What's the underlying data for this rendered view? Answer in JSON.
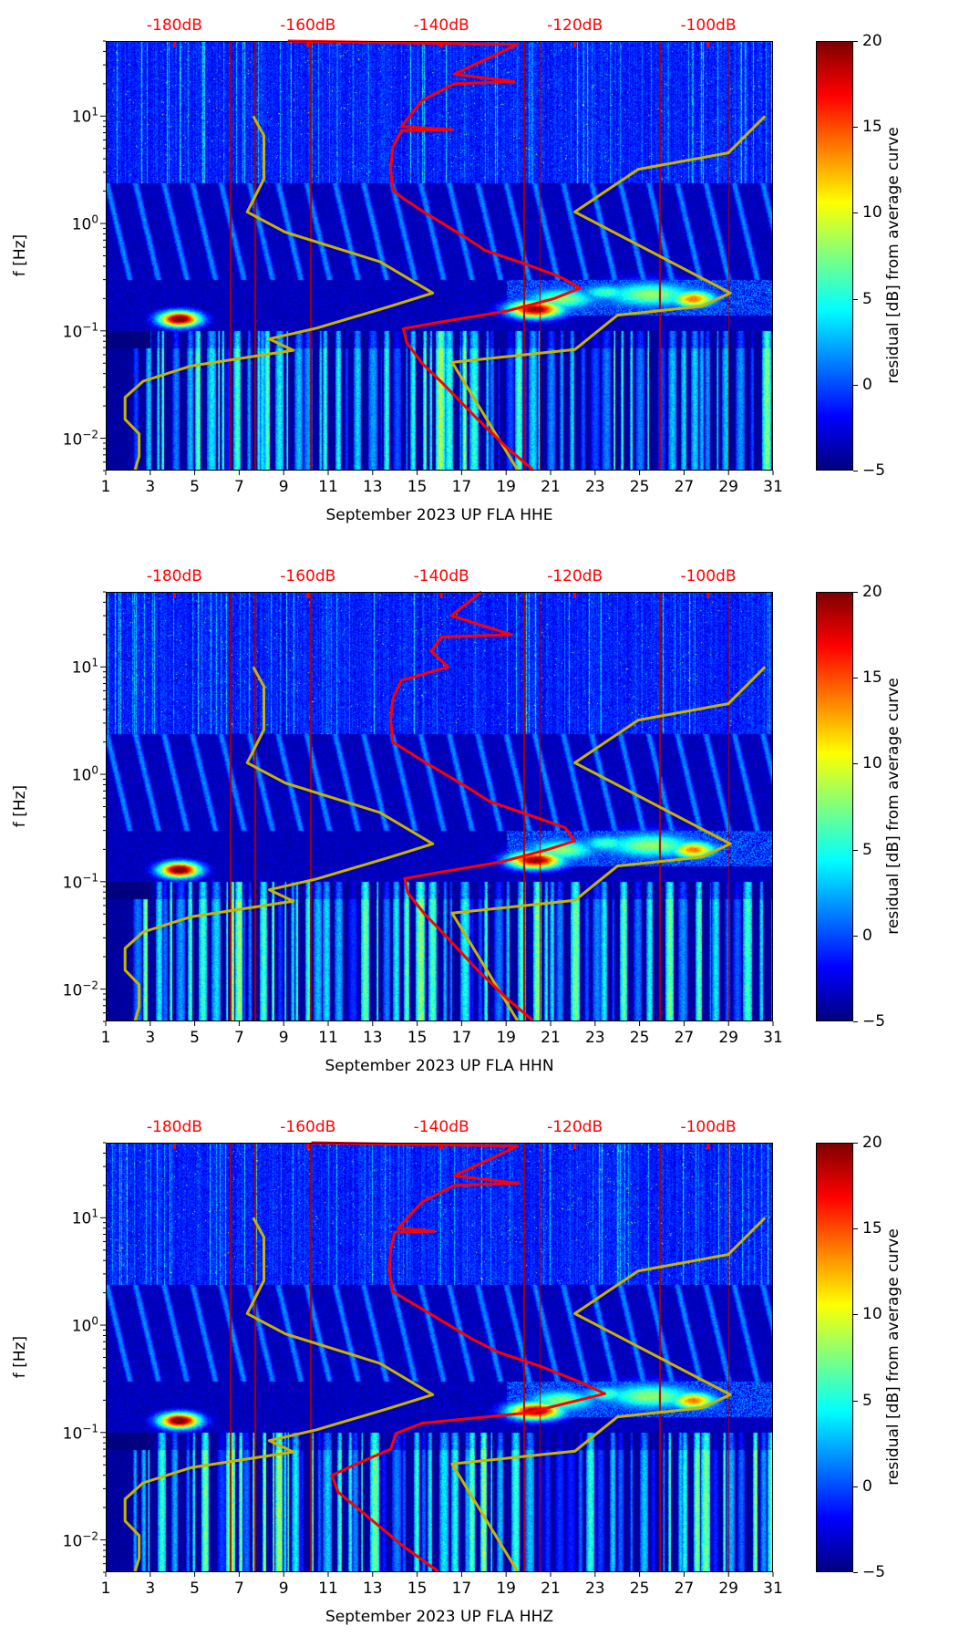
{
  "chart_data": [
    {
      "type": "heatmap",
      "title": "",
      "xlabel": "September 2023 UP FLA  HHE",
      "ylabel": "f [Hz]",
      "colorbar_label": "residual [dB] from average curve",
      "xlim": [
        1,
        31
      ],
      "ylim": [
        0.005,
        50
      ],
      "yscale": "log",
      "clim": [
        -5,
        20
      ],
      "top_xlim": [
        -190.3,
        -90.3
      ],
      "red_curve": [
        [
          -163,
          50
        ],
        [
          -128.6,
          46.4
        ],
        [
          -138.1,
          24.6
        ],
        [
          -129.1,
          21
        ],
        [
          -138.1,
          20
        ],
        [
          -142.9,
          14
        ],
        [
          -146,
          8
        ],
        [
          -138.4,
          7.5
        ],
        [
          -146,
          7.3
        ],
        [
          -147.3,
          5.1
        ],
        [
          -147.6,
          3.2
        ],
        [
          -147.3,
          2.06
        ],
        [
          -146,
          1.76
        ],
        [
          -142.9,
          1.31
        ],
        [
          -136.5,
          0.75
        ],
        [
          -133.4,
          0.56
        ],
        [
          -127,
          0.41
        ],
        [
          -122.3,
          0.32
        ],
        [
          -119.2,
          0.25
        ],
        [
          -123.1,
          0.2
        ],
        [
          -130.2,
          0.153
        ],
        [
          -139.7,
          0.122
        ],
        [
          -145.7,
          0.105
        ],
        [
          -145.2,
          0.078
        ],
        [
          -142.9,
          0.05
        ],
        [
          -139.7,
          0.032
        ],
        [
          -135,
          0.016
        ],
        [
          -130.2,
          0.0082
        ],
        [
          -126.3,
          0.0051
        ]
      ]
    },
    {
      "type": "heatmap",
      "title": "",
      "xlabel": "September 2023 UP FLA  HHN",
      "ylabel": "f [Hz]",
      "colorbar_label": "residual [dB] from average curve",
      "xlim": [
        1,
        31
      ],
      "ylim": [
        0.005,
        50
      ],
      "yscale": "log",
      "clim": [
        -5,
        20
      ],
      "top_xlim": [
        -190.3,
        -90.3
      ],
      "red_curve": [
        [
          -134,
          50
        ],
        [
          -138.5,
          30
        ],
        [
          -129.5,
          20
        ],
        [
          -140,
          19
        ],
        [
          -141.5,
          14
        ],
        [
          -139,
          10
        ],
        [
          -146,
          7.5
        ],
        [
          -147.3,
          5
        ],
        [
          -147.6,
          3.2
        ],
        [
          -147.3,
          2.0
        ],
        [
          -145.5,
          1.7
        ],
        [
          -142.5,
          1.3
        ],
        [
          -136,
          0.75
        ],
        [
          -132.8,
          0.56
        ],
        [
          -126.5,
          0.41
        ],
        [
          -121.5,
          0.32
        ],
        [
          -120,
          0.24
        ],
        [
          -124,
          0.2
        ],
        [
          -131,
          0.153
        ],
        [
          -140,
          0.123
        ],
        [
          -145.5,
          0.107
        ],
        [
          -145,
          0.078
        ],
        [
          -142.5,
          0.05
        ],
        [
          -139.5,
          0.032
        ],
        [
          -135,
          0.016
        ],
        [
          -130.2,
          0.0082
        ],
        [
          -126.3,
          0.0051
        ]
      ]
    },
    {
      "type": "heatmap",
      "title": "",
      "xlabel": "September 2023 UP FLA  HHZ",
      "ylabel": "f [Hz]",
      "colorbar_label": "residual [dB] from average curve",
      "xlim": [
        1,
        31
      ],
      "ylim": [
        0.005,
        50
      ],
      "yscale": "log",
      "clim": [
        -5,
        20
      ],
      "top_xlim": [
        -190.3,
        -90.3
      ],
      "red_curve": [
        [
          -159.5,
          50
        ],
        [
          -128.6,
          46.4
        ],
        [
          -138.1,
          24.6
        ],
        [
          -128.5,
          21
        ],
        [
          -138.1,
          20
        ],
        [
          -142.9,
          14
        ],
        [
          -146.5,
          8
        ],
        [
          -141,
          7.5
        ],
        [
          -147,
          7.3
        ],
        [
          -147.6,
          5.1
        ],
        [
          -147.8,
          3.2
        ],
        [
          -147.3,
          2.06
        ],
        [
          -145.5,
          1.76
        ],
        [
          -142,
          1.31
        ],
        [
          -135.5,
          0.75
        ],
        [
          -131.5,
          0.56
        ],
        [
          -125,
          0.41
        ],
        [
          -119.5,
          0.3
        ],
        [
          -115.5,
          0.23
        ],
        [
          -127,
          0.153
        ],
        [
          -142.9,
          0.122
        ],
        [
          -146.8,
          0.098
        ],
        [
          -147.6,
          0.07
        ],
        [
          -152.4,
          0.052
        ],
        [
          -156.4,
          0.04
        ],
        [
          -155.5,
          0.028
        ],
        [
          -150.8,
          0.016
        ],
        [
          -146,
          0.009
        ],
        [
          -140.5,
          0.0051
        ]
      ]
    }
  ],
  "model_curves": {
    "low_noise_model": [
      [
        -168.2,
        10
      ],
      [
        -166.6,
        6.6
      ],
      [
        -166.6,
        2.6
      ],
      [
        -169.1,
        1.28
      ],
      [
        -163.4,
        0.83
      ],
      [
        -149.2,
        0.44
      ],
      [
        -141.3,
        0.225
      ],
      [
        -147.6,
        0.17
      ],
      [
        -158.7,
        0.106
      ],
      [
        -165.8,
        0.084
      ],
      [
        -162.2,
        0.066
      ],
      [
        -169.7,
        0.056
      ],
      [
        -177.6,
        0.047
      ],
      [
        -184.7,
        0.034
      ],
      [
        -187.4,
        0.024
      ],
      [
        -187.4,
        0.015
      ],
      [
        -185.3,
        0.011
      ],
      [
        -185.3,
        0.0068
      ],
      [
        -185.9,
        0.0051
      ]
    ],
    "high_noise_model": [
      [
        -91.5,
        10
      ],
      [
        -97,
        4.55
      ],
      [
        -110.5,
        3.2
      ],
      [
        -120,
        1.28
      ],
      [
        -96.7,
        0.225
      ],
      [
        -101,
        0.17
      ],
      [
        -113.6,
        0.14
      ],
      [
        -120,
        0.067
      ],
      [
        -138.4,
        0.051
      ],
      [
        -128.6,
        0.0051
      ]
    ]
  },
  "axes": {
    "x_ticks": [
      "1",
      "3",
      "5",
      "7",
      "9",
      "11",
      "13",
      "15",
      "17",
      "19",
      "21",
      "23",
      "25",
      "27",
      "29",
      "31"
    ],
    "top_ticks": [
      {
        "value": -180,
        "label": "-180dB"
      },
      {
        "value": -160,
        "label": "-160dB"
      },
      {
        "value": -140,
        "label": "-140dB"
      },
      {
        "value": -120,
        "label": "-120dB"
      },
      {
        "value": -100,
        "label": "-100dB"
      }
    ],
    "y_ticks": [
      {
        "value": 0.01,
        "base": "10",
        "exp": "−2"
      },
      {
        "value": 0.1,
        "base": "10",
        "exp": "−1"
      },
      {
        "value": 1,
        "base": "10",
        "exp": "0"
      },
      {
        "value": 10,
        "base": "10",
        "exp": "1"
      }
    ],
    "colorbar_ticks": [
      "−5",
      "0",
      "5",
      "10",
      "15",
      "20"
    ],
    "colorbar_values": [
      -5,
      0,
      5,
      10,
      15,
      20
    ]
  },
  "colors": {
    "red_curve": "#ff0000",
    "model_curve": "#c8b400",
    "top_axis": "#ff0000"
  }
}
